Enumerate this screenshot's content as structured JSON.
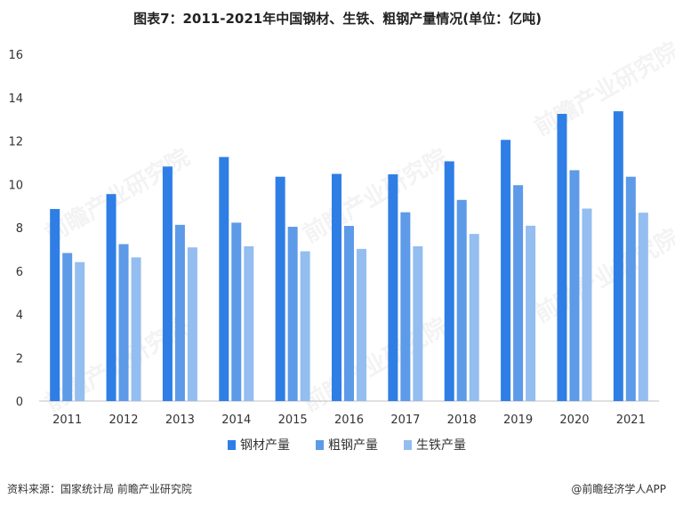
{
  "title": "图表7：2011-2021年中国钢材、生铁、粗钢产量情况(单位：亿吨)",
  "source": "资料来源：国家统计局 前瞻产业研究院",
  "brand": "@前瞻经济学人APP",
  "watermark": "前瞻产业研究院",
  "colors": {
    "steel": "#2e7ee6",
    "crude": "#5d9ae8",
    "pig": "#94bdf0",
    "axis": "#bfbfbf"
  },
  "chart_data": {
    "type": "bar",
    "title": "图表7：2011-2021年中国钢材、生铁、粗钢产量情况(单位：亿吨)",
    "categories": [
      "2011",
      "2012",
      "2013",
      "2014",
      "2015",
      "2016",
      "2017",
      "2018",
      "2019",
      "2020",
      "2021"
    ],
    "series": [
      {
        "name": "钢材产量",
        "values": [
          8.86,
          9.55,
          10.82,
          11.26,
          10.35,
          10.48,
          10.46,
          11.06,
          12.05,
          13.25,
          13.37
        ]
      },
      {
        "name": "粗钢产量",
        "values": [
          6.83,
          7.24,
          8.13,
          8.23,
          8.04,
          8.08,
          8.71,
          9.28,
          9.96,
          10.65,
          10.35
        ]
      },
      {
        "name": "生铁产量",
        "values": [
          6.41,
          6.63,
          7.09,
          7.14,
          6.91,
          7.02,
          7.14,
          7.71,
          8.09,
          8.88,
          8.69
        ]
      }
    ],
    "ylim": [
      0,
      16
    ],
    "yticks": [
      0,
      2,
      4,
      6,
      8,
      10,
      12,
      14,
      16
    ],
    "grid": false,
    "legend": "bottom"
  }
}
